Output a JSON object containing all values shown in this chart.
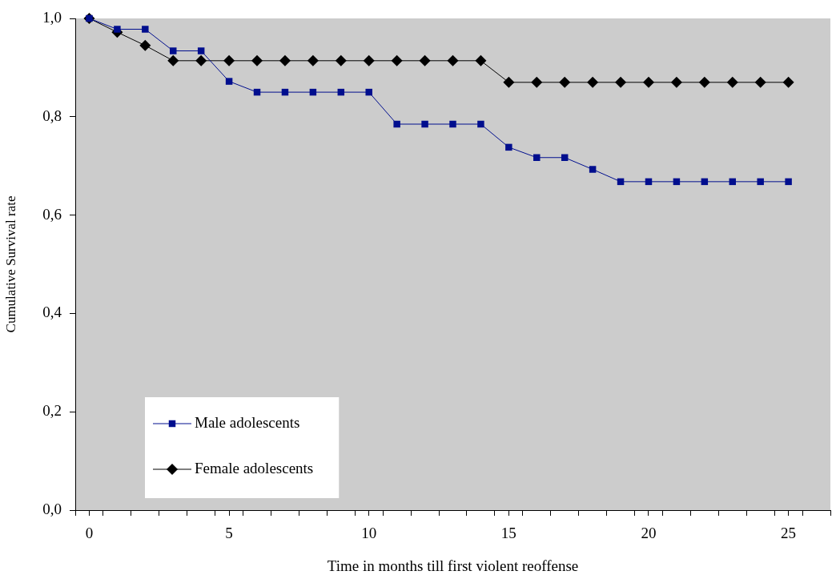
{
  "chart_data": {
    "type": "line",
    "xlabel": "Time in months till first violent reoffense",
    "ylabel": "Cumulative Survival rate",
    "x": [
      0,
      1,
      2,
      3,
      4,
      5,
      6,
      7,
      8,
      9,
      10,
      11,
      12,
      13,
      14,
      15,
      16,
      17,
      18,
      19,
      20,
      21,
      22,
      23,
      24,
      25
    ],
    "xlim": [
      -0.5,
      26.5
    ],
    "xticks": [
      {
        "value": -0.5,
        "label": null
      },
      {
        "value": 0,
        "label": "0"
      },
      {
        "value": 0.5,
        "label": null
      },
      {
        "value": 1.5,
        "label": null
      },
      {
        "value": 2.5,
        "label": null
      },
      {
        "value": 3.5,
        "label": null
      },
      {
        "value": 4.5,
        "label": null
      },
      {
        "value": 5,
        "label": "5"
      },
      {
        "value": 5.5,
        "label": null
      },
      {
        "value": 6.5,
        "label": null
      },
      {
        "value": 7.5,
        "label": null
      },
      {
        "value": 8.5,
        "label": null
      },
      {
        "value": 9.5,
        "label": null
      },
      {
        "value": 10,
        "label": "10"
      },
      {
        "value": 10.5,
        "label": null
      },
      {
        "value": 11.5,
        "label": null
      },
      {
        "value": 12.5,
        "label": null
      },
      {
        "value": 13.5,
        "label": null
      },
      {
        "value": 14.5,
        "label": null
      },
      {
        "value": 15,
        "label": "15"
      },
      {
        "value": 15.5,
        "label": null
      },
      {
        "value": 16.5,
        "label": null
      },
      {
        "value": 17.5,
        "label": null
      },
      {
        "value": 18.5,
        "label": null
      },
      {
        "value": 19.5,
        "label": null
      },
      {
        "value": 20,
        "label": "20"
      },
      {
        "value": 20.5,
        "label": null
      },
      {
        "value": 21.5,
        "label": null
      },
      {
        "value": 22.5,
        "label": null
      },
      {
        "value": 23.5,
        "label": null
      },
      {
        "value": 24.5,
        "label": null
      },
      {
        "value": 25,
        "label": "25"
      },
      {
        "value": 25.5,
        "label": null
      },
      {
        "value": 26.5,
        "label": null
      }
    ],
    "ylim": [
      0,
      1
    ],
    "yticks": [
      {
        "value": 0,
        "label": "0,0"
      },
      {
        "value": 0.2,
        "label": "0,2"
      },
      {
        "value": 0.4,
        "label": "0,4"
      },
      {
        "value": 0.6,
        "label": "0,6"
      },
      {
        "value": 0.8,
        "label": "0,8"
      },
      {
        "value": 1,
        "label": "1,0"
      }
    ],
    "grid": false,
    "legend": "bottom left",
    "series": [
      {
        "name": "Male adolescents",
        "color": "#000e8e",
        "marker": "square",
        "values": [
          1.0,
          0.978,
          0.978,
          0.934,
          0.934,
          0.872,
          0.85,
          0.85,
          0.85,
          0.85,
          0.85,
          0.785,
          0.785,
          0.785,
          0.785,
          0.738,
          0.717,
          0.717,
          0.693,
          0.668,
          0.668,
          0.668,
          0.668,
          0.668,
          0.668,
          0.668
        ]
      },
      {
        "name": "Female adolescents",
        "color": "#000000",
        "marker": "diamond",
        "values": [
          1.0,
          0.972,
          0.945,
          0.914,
          0.914,
          0.914,
          0.914,
          0.914,
          0.914,
          0.914,
          0.914,
          0.914,
          0.914,
          0.914,
          0.914,
          0.87,
          0.87,
          0.87,
          0.87,
          0.87,
          0.87,
          0.87,
          0.87,
          0.87,
          0.87,
          0.87
        ]
      }
    ]
  }
}
